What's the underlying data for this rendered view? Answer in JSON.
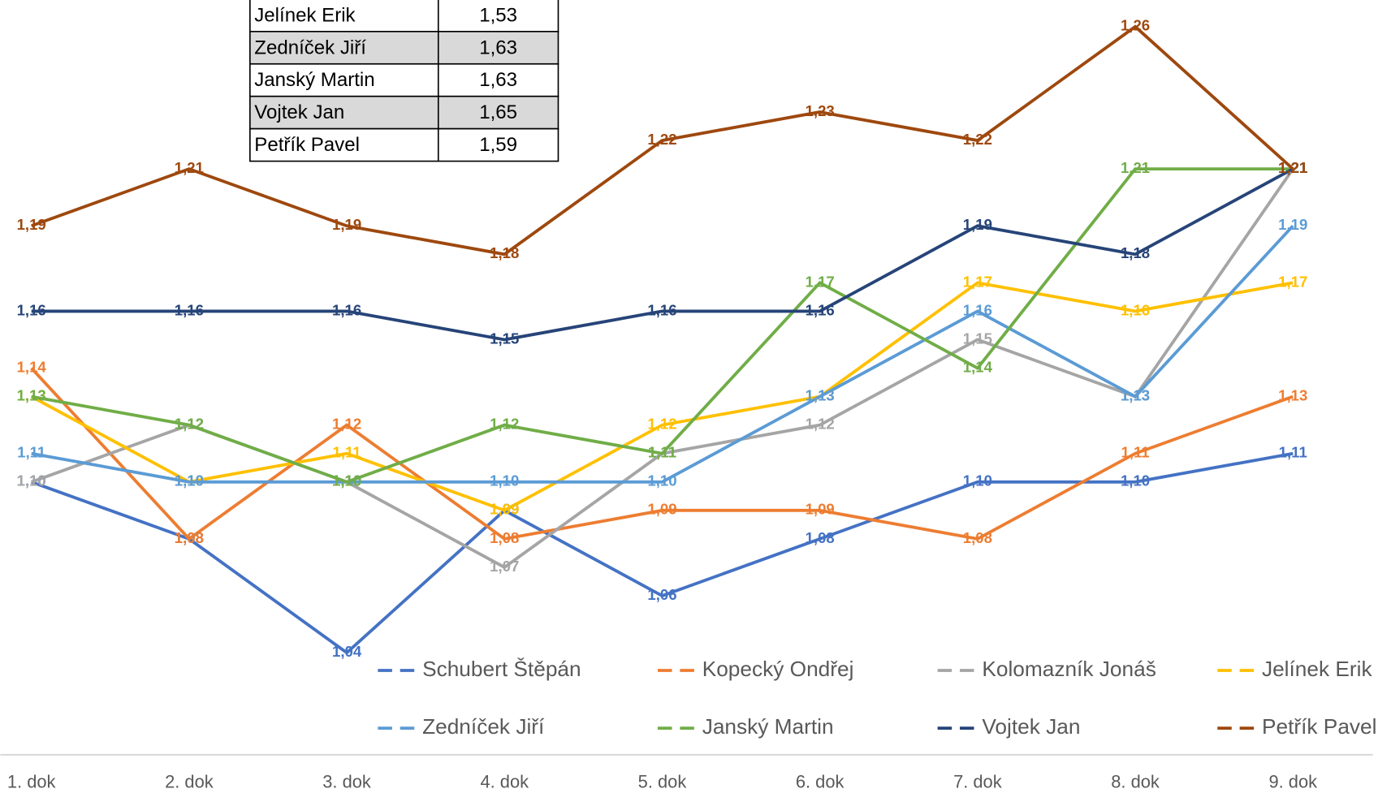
{
  "chart_data": {
    "type": "line",
    "categories": [
      "1. dok",
      "2. dok",
      "3. dok",
      "4. dok",
      "5. dok",
      "6. dok",
      "7. dok",
      "8. dok",
      "9. dok"
    ],
    "ylim": [
      1.03,
      1.27
    ],
    "legend": "bottom",
    "series": [
      {
        "name": "Schubert Štěpán",
        "color": "#4472c4",
        "values": [
          1.1,
          1.08,
          1.04,
          1.09,
          1.06,
          1.08,
          1.1,
          1.1,
          1.11
        ],
        "value_labels": [
          "1,10",
          "1,08",
          "1,04",
          "1,09",
          "1,06",
          "1,08",
          "1,10",
          "1,10",
          "1,11"
        ]
      },
      {
        "name": "Kopecký Ondřej",
        "color": "#ed7d31",
        "values": [
          1.14,
          1.08,
          1.12,
          1.08,
          1.09,
          1.09,
          1.08,
          1.11,
          1.13
        ],
        "value_labels": [
          "1,14",
          "1,08",
          "1,12",
          "1,08",
          "1,09",
          "1,09",
          "1,08",
          "1,11",
          "1,13"
        ]
      },
      {
        "name": "Kolomazník Jonáš",
        "color": "#a5a5a5",
        "values": [
          1.1,
          1.12,
          1.1,
          1.07,
          1.11,
          1.12,
          1.15,
          1.13,
          1.21
        ],
        "value_labels": [
          "1,10",
          "1,12",
          "1,10",
          "1,07",
          "1,11",
          "1,12",
          "1,15",
          "1,13",
          "1,21"
        ]
      },
      {
        "name": "Jelínek Erik",
        "color": "#ffc000",
        "values": [
          1.13,
          1.1,
          1.11,
          1.09,
          1.12,
          1.13,
          1.17,
          1.16,
          1.17
        ],
        "value_labels": [
          "1,13",
          "1,10",
          "1,11",
          "1,09",
          "1,12",
          "1,13",
          "1,17",
          "1,16",
          "1,17"
        ]
      },
      {
        "name": "Zedníček Jiří",
        "color": "#5b9bd5",
        "values": [
          1.11,
          1.1,
          1.1,
          1.1,
          1.1,
          1.13,
          1.16,
          1.13,
          1.19
        ],
        "value_labels": [
          "1,11",
          "1,10",
          "1,10",
          "1,10",
          "1,10",
          "1,13",
          "1,16",
          "1,13",
          "1,19"
        ]
      },
      {
        "name": "Janský Martin",
        "color": "#70ad47",
        "values": [
          1.13,
          1.12,
          1.1,
          1.12,
          1.11,
          1.17,
          1.14,
          1.21,
          1.21
        ],
        "value_labels": [
          "1,13",
          "1,12",
          "1,10",
          "1,12",
          "1,11",
          "1,17",
          "1,14",
          "1,21",
          "1,21"
        ]
      },
      {
        "name": "Vojtek Jan",
        "color": "#264478",
        "values": [
          1.16,
          1.16,
          1.16,
          1.15,
          1.16,
          1.16,
          1.19,
          1.18,
          1.21
        ],
        "value_labels": [
          "1,16",
          "1,16",
          "1,16",
          "1,15",
          "1,16",
          "1,16",
          "1,19",
          "1,18",
          "1,21"
        ]
      },
      {
        "name": "Petřík Pavel",
        "color": "#9e480e",
        "values": [
          1.19,
          1.21,
          1.19,
          1.18,
          1.22,
          1.23,
          1.22,
          1.26,
          1.21
        ],
        "value_labels": [
          "1,19",
          "1,21",
          "1,19",
          "1,18",
          "1,22",
          "1,23",
          "1,22",
          "1,26",
          "1,21"
        ]
      }
    ]
  },
  "table": {
    "rows": [
      [
        "Jelínek Erik",
        "1,53"
      ],
      [
        "Zedníček Jiří",
        "1,63"
      ],
      [
        "Janský Martin",
        "1,63"
      ],
      [
        "Vojtek Jan",
        "1,65"
      ],
      [
        "Petřík Pavel",
        "1,59"
      ]
    ]
  }
}
